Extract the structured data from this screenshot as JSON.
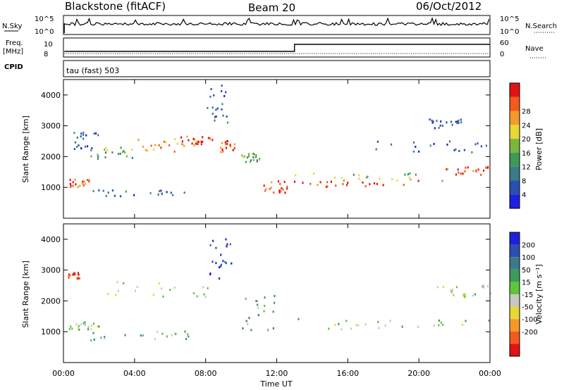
{
  "header": {
    "station": "Blackstone (fitACF)",
    "beam": "Beam 20",
    "date": "06/Oct/2012"
  },
  "strip": {
    "nsky_label": "N.Sky",
    "nsky_ticks": [
      "10^5",
      "10^0"
    ],
    "nsearch_label": "N.Search",
    "nsearch_ticks": [
      "10^5",
      "10^0"
    ],
    "freq_label_line1": "Freq.",
    "freq_label_line2": "[MHz]",
    "freq_ticks": [
      "10",
      "8"
    ],
    "nave_label": "Nave",
    "nave_ticks": [
      "60",
      "0"
    ],
    "cpid_label": "CPID",
    "cpid_value": "tau (fast) 503"
  },
  "colors": {
    "power_scale": [
      "#1f1fe0",
      "#2a4fb0",
      "#3a7a8a",
      "#3c9a5a",
      "#7ab63c",
      "#e8d832",
      "#f59a28",
      "#f25a1e",
      "#e01414"
    ],
    "velocity_scale": [
      "#1f1fe0",
      "#2a4fb0",
      "#3a7a8a",
      "#3c9a5a",
      "#5ac83a",
      "#c8c8c0",
      "#e8d832",
      "#f59a28",
      "#f25a1e",
      "#e01414"
    ]
  },
  "chart_data": [
    {
      "type": "heatmap",
      "panel": "power",
      "ylabel": "Slant Range [km]",
      "xlim": [
        "00:00",
        "24:00"
      ],
      "ylim": [
        0,
        4500
      ],
      "yticks": [
        "1000",
        "2000",
        "3000",
        "4000"
      ],
      "colorbar": {
        "label": "Power [dB]",
        "ticks": [
          "4",
          "8",
          "12",
          "16",
          "20",
          "24",
          "28"
        ]
      },
      "regions": [
        {
          "t0": 0.3,
          "t1": 1.5,
          "r0": 1000,
          "r1": 1250,
          "level": 0.85
        },
        {
          "t0": 1.5,
          "t1": 4.0,
          "r0": 1900,
          "r1": 2300,
          "level": 0.45
        },
        {
          "t0": 4.0,
          "t1": 7.5,
          "r0": 2150,
          "r1": 2650,
          "level": 0.75
        },
        {
          "t0": 6.5,
          "t1": 8.5,
          "r0": 2350,
          "r1": 2650,
          "level": 0.9
        },
        {
          "t0": 0.5,
          "t1": 2.0,
          "r0": 2200,
          "r1": 2800,
          "level": 0.2
        },
        {
          "t0": 1.5,
          "t1": 7.0,
          "r0": 700,
          "r1": 900,
          "level": 0.25
        },
        {
          "t0": 8.0,
          "t1": 9.2,
          "r0": 3000,
          "r1": 4300,
          "level": 0.2
        },
        {
          "t0": 8.8,
          "t1": 9.6,
          "r0": 2100,
          "r1": 2600,
          "level": 0.85
        },
        {
          "t0": 10.0,
          "t1": 11.0,
          "r0": 1800,
          "r1": 2100,
          "level": 0.4
        },
        {
          "t0": 11.2,
          "t1": 13.0,
          "r0": 800,
          "r1": 1200,
          "level": 0.9
        },
        {
          "t0": 13.0,
          "t1": 21.5,
          "r0": 1000,
          "r1": 1200,
          "level": 0.95
        },
        {
          "t0": 13.0,
          "t1": 21.5,
          "r0": 1200,
          "r1": 1450,
          "level": 0.5
        },
        {
          "t0": 21.5,
          "t1": 23.9,
          "r0": 1350,
          "r1": 1650,
          "level": 0.9
        },
        {
          "t0": 17.5,
          "t1": 24.0,
          "r0": 2100,
          "r1": 2500,
          "level": 0.2
        },
        {
          "t0": 20.5,
          "t1": 22.5,
          "r0": 2900,
          "r1": 3200,
          "level": 0.15
        }
      ]
    },
    {
      "type": "heatmap",
      "panel": "velocity",
      "ylabel": "Slant Range [km]",
      "xlabel": "Time UT",
      "xlim": [
        "00:00",
        "24:00"
      ],
      "ylim": [
        0,
        4500
      ],
      "yticks": [
        "1000",
        "2000",
        "3000",
        "4000"
      ],
      "xticks": [
        "00:00",
        "04:00",
        "08:00",
        "12:00",
        "16:00",
        "20:00",
        "00:00"
      ],
      "colorbar": {
        "label": "Velocity [m s⁻¹]",
        "ticks": [
          "200",
          "100",
          "50",
          "15",
          "-15",
          "-50",
          "-100",
          "-200"
        ]
      },
      "regions": [
        {
          "t0": 0.3,
          "t1": 2.0,
          "r0": 1050,
          "r1": 1300,
          "level": 0.5
        },
        {
          "t0": 2.0,
          "t1": 8.5,
          "r0": 2100,
          "r1": 2600,
          "level": 0.5
        },
        {
          "t0": 1.5,
          "t1": 7.0,
          "r0": 700,
          "r1": 1000,
          "level": 0.4
        },
        {
          "t0": 10.0,
          "t1": 12.0,
          "r0": 1000,
          "r1": 2200,
          "level": 0.4
        },
        {
          "t0": 13.0,
          "t1": 24.0,
          "r0": 1050,
          "r1": 1400,
          "level": 0.5
        },
        {
          "t0": 21.0,
          "t1": 24.0,
          "r0": 2100,
          "r1": 2500,
          "level": 0.5
        },
        {
          "t0": 8.2,
          "t1": 9.5,
          "r0": 2700,
          "r1": 4200,
          "level": 0.05
        },
        {
          "t0": 0.2,
          "t1": 1.0,
          "r0": 2700,
          "r1": 2900,
          "level": 0.85
        }
      ]
    }
  ]
}
